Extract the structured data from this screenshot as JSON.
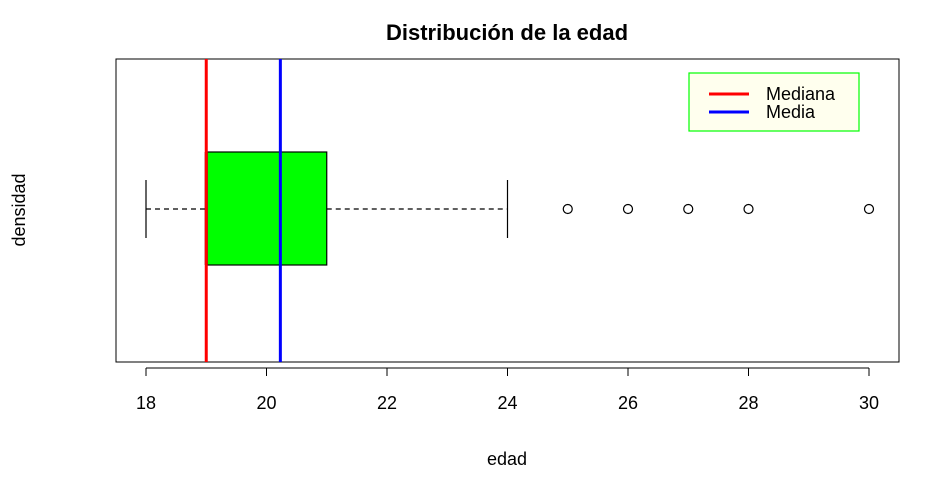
{
  "chart_data": {
    "type": "boxplot",
    "orientation": "horizontal",
    "title": "Distribución de la edad",
    "xlabel": "edad",
    "ylabel": "densidad",
    "xlim": [
      17.5,
      30.5
    ],
    "x_ticks": [
      18,
      20,
      22,
      24,
      26,
      28,
      30
    ],
    "x_tick_labels": [
      "18",
      "20",
      "22",
      "24",
      "26",
      "28",
      "30"
    ],
    "grid": false,
    "box": {
      "whisker_low": 18,
      "q1": 19,
      "median": 19,
      "q3": 21,
      "whisker_high": 24,
      "fill_color": "#00ff00",
      "outliers": [
        25,
        26,
        27,
        28,
        30
      ]
    },
    "reference_lines": [
      {
        "name": "Mediana",
        "value": 19,
        "color": "#ff0000"
      },
      {
        "name": "Media",
        "value": 20.23,
        "color": "#0000ff"
      }
    ],
    "legend": {
      "position": "top-right",
      "border_color": "#00ff00",
      "background": "#ffffee",
      "entries": [
        "Mediana",
        "Media"
      ]
    }
  }
}
